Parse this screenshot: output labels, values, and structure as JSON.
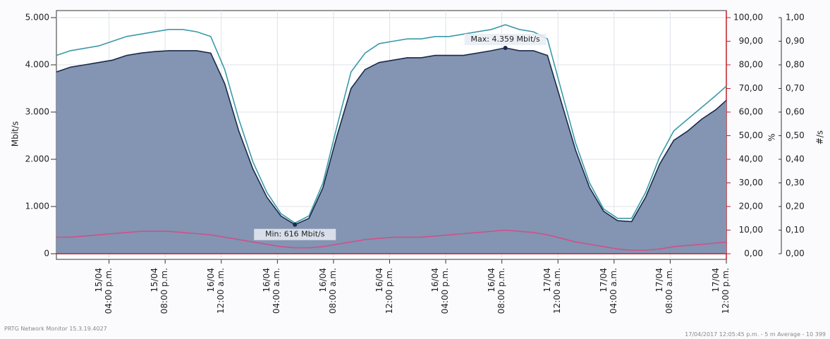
{
  "chart_data": {
    "type": "area",
    "y_label": "Mbit/s",
    "y2_label": "%",
    "y3_label": "#/s",
    "annotations": [
      "Max: 4.359 Mbit/s",
      "Min: 616 Mbit/s"
    ],
    "footer_left": "PRTG Network Monitor 15.3.19.4027",
    "footer_right": "17/04/2017 12:05:45 p.m. - 5 m Average - 10 399",
    "x": [
      "2017-04-15T12:15",
      "2017-04-15T13:15",
      "2017-04-15T14:15",
      "2017-04-15T15:15",
      "2017-04-15T16:15",
      "2017-04-15T17:15",
      "2017-04-15T18:15",
      "2017-04-15T19:15",
      "2017-04-15T20:15",
      "2017-04-15T21:15",
      "2017-04-15T22:15",
      "2017-04-15T23:15",
      "2017-04-16T00:15",
      "2017-04-16T01:15",
      "2017-04-16T02:15",
      "2017-04-16T03:15",
      "2017-04-16T04:15",
      "2017-04-16T05:15",
      "2017-04-16T06:15",
      "2017-04-16T07:15",
      "2017-04-16T08:15",
      "2017-04-16T09:15",
      "2017-04-16T10:15",
      "2017-04-16T11:15",
      "2017-04-16T12:15",
      "2017-04-16T13:15",
      "2017-04-16T14:15",
      "2017-04-16T15:15",
      "2017-04-16T16:15",
      "2017-04-16T17:15",
      "2017-04-16T18:15",
      "2017-04-16T19:15",
      "2017-04-16T20:15",
      "2017-04-16T21:15",
      "2017-04-16T22:15",
      "2017-04-16T23:15",
      "2017-04-17T00:15",
      "2017-04-17T01:15",
      "2017-04-17T02:15",
      "2017-04-17T03:15",
      "2017-04-17T04:15",
      "2017-04-17T05:15",
      "2017-04-17T06:15",
      "2017-04-17T07:15",
      "2017-04-17T08:15",
      "2017-04-17T09:15",
      "2017-04-17T10:15",
      "2017-04-17T11:15",
      "2017-04-17T12:00"
    ],
    "series": [
      {
        "color": "#3a9aa8",
        "fill": false,
        "values": [
          4.2,
          4.3,
          4.35,
          4.4,
          4.5,
          4.6,
          4.65,
          4.7,
          4.75,
          4.75,
          4.7,
          4.6,
          3.9,
          2.85,
          1.95,
          1.3,
          0.85,
          0.65,
          0.8,
          1.5,
          2.7,
          3.85,
          4.25,
          4.45,
          4.5,
          4.55,
          4.55,
          4.6,
          4.6,
          4.65,
          4.7,
          4.75,
          4.85,
          4.75,
          4.7,
          4.55,
          3.45,
          2.35,
          1.5,
          0.95,
          0.75,
          0.75,
          1.3,
          2.05,
          2.6,
          2.85,
          3.1,
          3.35,
          3.55
        ]
      },
      {
        "color": "#1b2a4a",
        "fill": true,
        "values": [
          3.85,
          3.95,
          4.0,
          4.05,
          4.1,
          4.2,
          4.25,
          4.28,
          4.3,
          4.3,
          4.3,
          4.25,
          3.6,
          2.6,
          1.8,
          1.2,
          0.8,
          0.616,
          0.75,
          1.4,
          2.5,
          3.5,
          3.9,
          4.05,
          4.1,
          4.15,
          4.15,
          4.2,
          4.2,
          4.2,
          4.25,
          4.3,
          4.359,
          4.3,
          4.3,
          4.2,
          3.2,
          2.2,
          1.4,
          0.9,
          0.7,
          0.68,
          1.2,
          1.9,
          2.4,
          2.6,
          2.85,
          3.05,
          3.25
        ]
      },
      {
        "color": "#d0508a",
        "fill": false,
        "axis": "y2",
        "values": [
          7,
          7,
          7.5,
          8,
          8.5,
          9,
          9.5,
          9.5,
          9.5,
          9,
          8.5,
          8,
          7,
          6,
          5,
          4,
          3,
          2.5,
          2.5,
          3,
          4,
          5,
          6,
          6.5,
          7,
          7,
          7,
          7.5,
          8,
          8.5,
          9,
          9.5,
          10,
          9.5,
          9,
          8,
          6.5,
          5,
          4,
          3,
          2,
          1.5,
          1.5,
          2,
          3,
          3.5,
          4,
          4.5,
          5
        ]
      }
    ],
    "xlim": [
      "2017-04-15T12:15",
      "2017-04-17T12:00"
    ],
    "xticks": [
      {
        "value": "2017-04-15T16:00",
        "label": "15/04\n04:00 p.m."
      },
      {
        "value": "2017-04-15T20:00",
        "label": "15/04\n08:00 p.m."
      },
      {
        "value": "2017-04-16T00:00",
        "label": "16/04\n12:00 a.m."
      },
      {
        "value": "2017-04-16T04:00",
        "label": "16/04\n04:00 a.m."
      },
      {
        "value": "2017-04-16T08:00",
        "label": "16/04\n08:00 a.m."
      },
      {
        "value": "2017-04-16T12:00",
        "label": "16/04\n12:00 p.m."
      },
      {
        "value": "2017-04-16T16:00",
        "label": "16/04\n04:00 p.m."
      },
      {
        "value": "2017-04-16T20:00",
        "label": "16/04\n08:00 p.m."
      },
      {
        "value": "2017-04-17T00:00",
        "label": "17/04\n12:00 a.m."
      },
      {
        "value": "2017-04-17T04:00",
        "label": "17/04\n04:00 a.m."
      },
      {
        "value": "2017-04-17T08:00",
        "label": "17/04\n08:00 a.m."
      },
      {
        "value": "2017-04-17T12:00",
        "label": "17/04\n12:00 p.m."
      }
    ],
    "ylim": [
      0,
      5
    ],
    "yticks": [
      0,
      {
        "value": 1,
        "label": "1.000"
      },
      {
        "value": 2,
        "label": "2.000"
      },
      {
        "value": 3,
        "label": "3.000"
      },
      {
        "value": 4,
        "label": "4.000"
      },
      {
        "value": 5,
        "label": "5.000"
      }
    ],
    "y2lim": [
      0,
      100
    ],
    "y2ticks": [
      {
        "value": 0,
        "label": "0,00"
      },
      {
        "value": 10,
        "label": "10,00"
      },
      {
        "value": 20,
        "label": "20,00"
      },
      {
        "value": 30,
        "label": "30,00"
      },
      {
        "value": 40,
        "label": "40,00"
      },
      {
        "value": 50,
        "label": "50,00"
      },
      {
        "value": 60,
        "label": "60,00"
      },
      {
        "value": 70,
        "label": "70,00"
      },
      {
        "value": 80,
        "label": "80,00"
      },
      {
        "value": 90,
        "label": "90,00"
      },
      {
        "value": 100,
        "label": "100,00"
      }
    ],
    "y3lim": [
      0,
      1
    ],
    "y3ticks": [
      {
        "value": 0,
        "label": "0,00"
      },
      {
        "value": 0.1,
        "label": "0,10"
      },
      {
        "value": 0.2,
        "label": "0,20"
      },
      {
        "value": 0.3,
        "label": "0,30"
      },
      {
        "value": 0.4,
        "label": "0,40"
      },
      {
        "value": 0.5,
        "label": "0,50"
      },
      {
        "value": 0.6,
        "label": "0,60"
      },
      {
        "value": 0.7,
        "label": "0,70"
      },
      {
        "value": 0.8,
        "label": "0,80"
      },
      {
        "value": 0.9,
        "label": "0,90"
      },
      {
        "value": 1,
        "label": "1,00"
      }
    ],
    "grid": true,
    "area_color": "#8395b3",
    "y2_color": "#c0202a"
  }
}
